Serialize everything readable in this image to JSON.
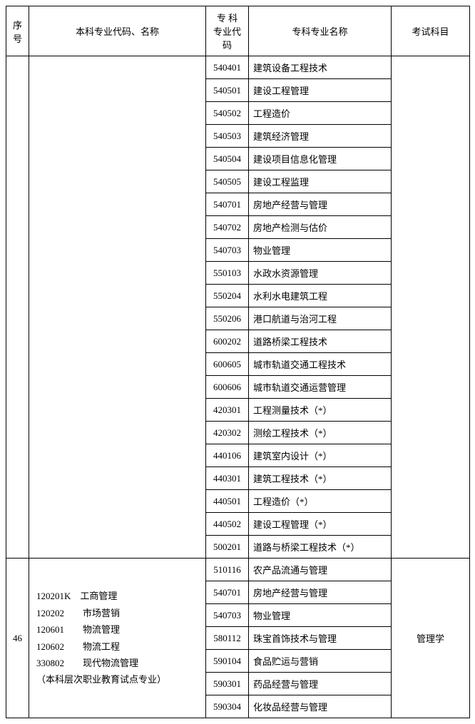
{
  "header": {
    "seq": "序号",
    "undergrad": "本科专业代码、名称",
    "code": "专 科\n专业代码",
    "major": "专科专业名称",
    "exam": "考试科目"
  },
  "group1": {
    "seq": "",
    "undergrad": "",
    "exam": "",
    "rows": [
      {
        "code": "540401",
        "major": "建筑设备工程技术"
      },
      {
        "code": "540501",
        "major": "建设工程管理"
      },
      {
        "code": "540502",
        "major": "工程造价"
      },
      {
        "code": "540503",
        "major": "建筑经济管理"
      },
      {
        "code": "540504",
        "major": "建设项目信息化管理"
      },
      {
        "code": "540505",
        "major": "建设工程监理"
      },
      {
        "code": "540701",
        "major": "房地产经营与管理"
      },
      {
        "code": "540702",
        "major": "房地产检测与估价"
      },
      {
        "code": "540703",
        "major": "物业管理"
      },
      {
        "code": "550103",
        "major": "水政水资源管理"
      },
      {
        "code": "550204",
        "major": "水利水电建筑工程"
      },
      {
        "code": "550206",
        "major": "港口航道与治河工程"
      },
      {
        "code": "600202",
        "major": "道路桥梁工程技术"
      },
      {
        "code": "600605",
        "major": "城市轨道交通工程技术"
      },
      {
        "code": "600606",
        "major": "城市轨道交通运营管理"
      },
      {
        "code": "420301",
        "major": "工程测量技术（*）"
      },
      {
        "code": "420302",
        "major": "测绘工程技术（*）"
      },
      {
        "code": "440106",
        "major": "建筑室内设计（*）"
      },
      {
        "code": "440301",
        "major": "建筑工程技术（*）"
      },
      {
        "code": "440501",
        "major": "工程造价（*）"
      },
      {
        "code": "440502",
        "major": "建设工程管理（*）"
      },
      {
        "code": "500201",
        "major": "道路与桥梁工程技术（*）"
      }
    ]
  },
  "group2": {
    "seq": "46",
    "undergrad_lines": {
      "l1": "120201K　工商管理",
      "l2": "120202　　市场营销",
      "l3": "120601　　物流管理",
      "l4": "120602　　物流工程",
      "l5": "330802　　现代物流管理",
      "l6": "（本科层次职业教育试点专业）"
    },
    "exam": "管理学",
    "rows": [
      {
        "code": "510116",
        "major": "农产品流通与管理"
      },
      {
        "code": "540701",
        "major": "房地产经营与管理"
      },
      {
        "code": "540703",
        "major": "物业管理"
      },
      {
        "code": "580112",
        "major": "珠宝首饰技术与管理"
      },
      {
        "code": "590104",
        "major": "食品贮运与营销"
      },
      {
        "code": "590301",
        "major": "药品经营与管理"
      },
      {
        "code": "590304",
        "major": "化妆品经营与管理"
      }
    ]
  }
}
